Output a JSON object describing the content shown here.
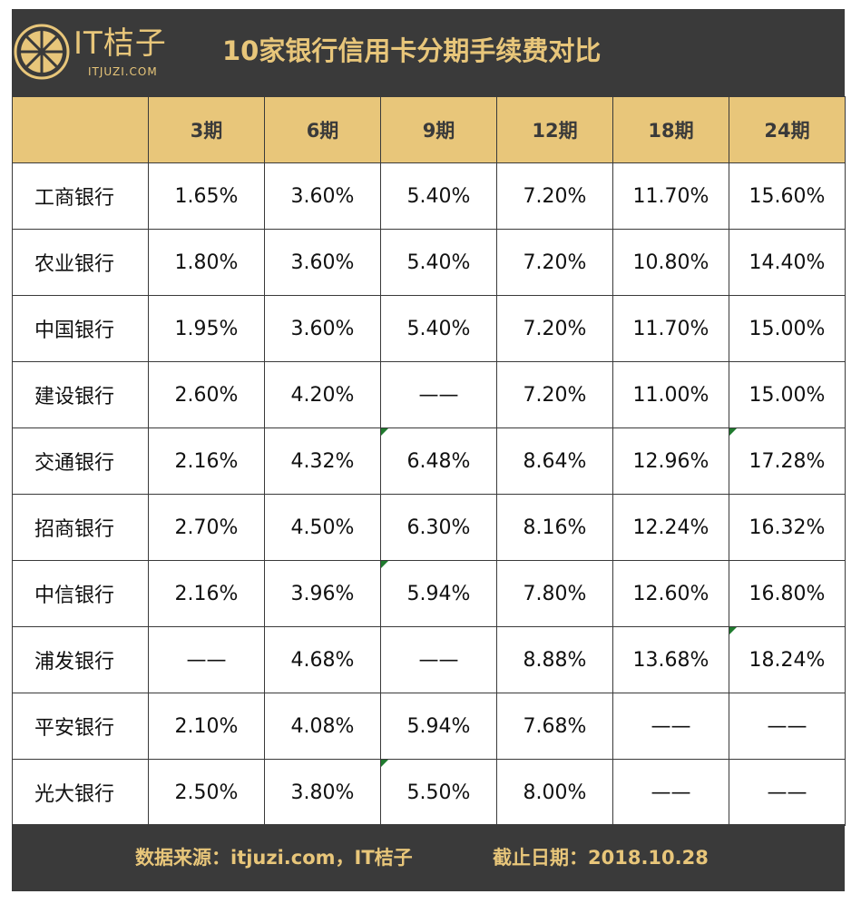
{
  "header": {
    "logo_text": "IT桔子",
    "logo_sub": "ITJUZI.COM",
    "title": "10家银行信用卡分期手续费对比"
  },
  "colors": {
    "dark": "#3a3a3a",
    "gold": "#e8c67a",
    "marker": "#1f7a2e"
  },
  "icons": {
    "logo": "orange-slice-icon"
  },
  "chart_data": {
    "type": "table",
    "title": "10家银行信用卡分期手续费对比",
    "columns": [
      "",
      "3期",
      "6期",
      "9期",
      "12期",
      "18期",
      "24期"
    ],
    "rows": [
      {
        "bank": "工商银行",
        "values": [
          "1.65%",
          "3.60%",
          "5.40%",
          "7.20%",
          "11.70%",
          "15.60%"
        ],
        "marked": []
      },
      {
        "bank": "农业银行",
        "values": [
          "1.80%",
          "3.60%",
          "5.40%",
          "7.20%",
          "10.80%",
          "14.40%"
        ],
        "marked": []
      },
      {
        "bank": "中国银行",
        "values": [
          "1.95%",
          "3.60%",
          "5.40%",
          "7.20%",
          "11.70%",
          "15.00%"
        ],
        "marked": []
      },
      {
        "bank": "建设银行",
        "values": [
          "2.60%",
          "4.20%",
          "——",
          "7.20%",
          "11.00%",
          "15.00%"
        ],
        "marked": []
      },
      {
        "bank": "交通银行",
        "values": [
          "2.16%",
          "4.32%",
          "6.48%",
          "8.64%",
          "12.96%",
          "17.28%"
        ],
        "marked": [
          2,
          5
        ]
      },
      {
        "bank": "招商银行",
        "values": [
          "2.70%",
          "4.50%",
          "6.30%",
          "8.16%",
          "12.24%",
          "16.32%"
        ],
        "marked": []
      },
      {
        "bank": "中信银行",
        "values": [
          "2.16%",
          "3.96%",
          "5.94%",
          "7.80%",
          "12.60%",
          "16.80%"
        ],
        "marked": [
          2
        ]
      },
      {
        "bank": "浦发银行",
        "values": [
          "——",
          "4.68%",
          "——",
          "8.88%",
          "13.68%",
          "18.24%"
        ],
        "marked": [
          5
        ]
      },
      {
        "bank": "平安银行",
        "values": [
          "2.10%",
          "4.08%",
          "5.94%",
          "7.68%",
          "——",
          "——"
        ],
        "marked": []
      },
      {
        "bank": "光大银行",
        "values": [
          "2.50%",
          "3.80%",
          "5.50%",
          "8.00%",
          "——",
          "——"
        ],
        "marked": [
          2
        ]
      }
    ]
  },
  "footer": {
    "source": "数据来源：itjuzi.com，IT桔子",
    "date": "截止日期：2018.10.28"
  }
}
